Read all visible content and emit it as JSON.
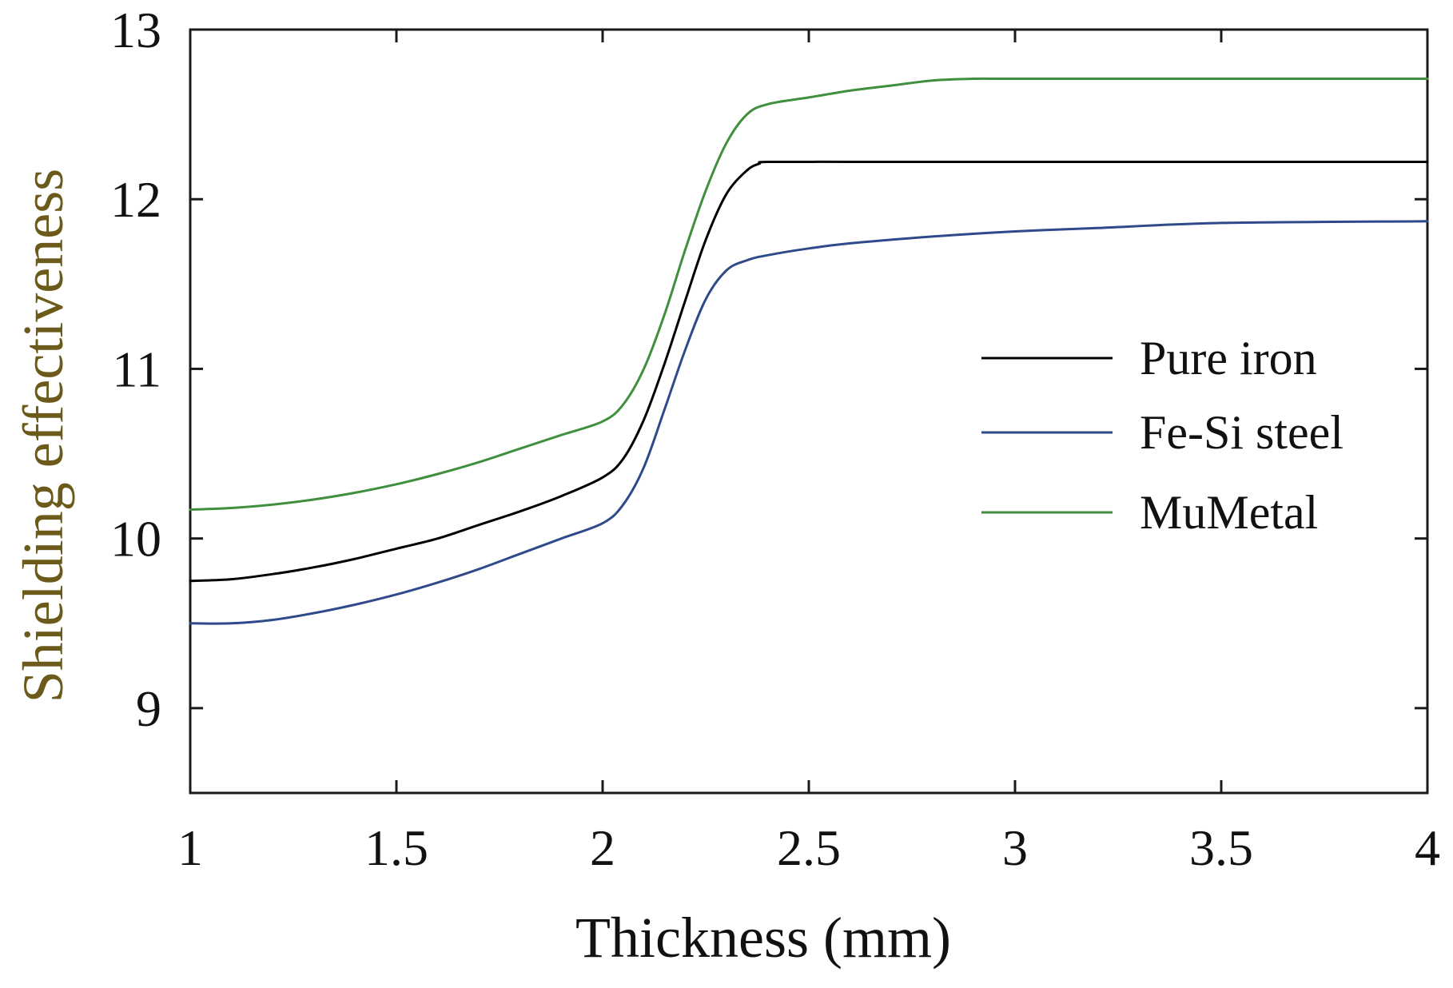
{
  "chart_data": {
    "type": "line",
    "xlabel": "Thickness (mm)",
    "ylabel": "Shielding effectiveness",
    "xlim": [
      1,
      4
    ],
    "ylim": [
      8.5,
      13
    ],
    "xticks": [
      1,
      1.5,
      2,
      2.5,
      3,
      3.5,
      4
    ],
    "xtick_labels": [
      "1",
      "1.5",
      "2",
      "2.5",
      "3",
      "3.5",
      "4"
    ],
    "yticks": [
      9,
      10,
      11,
      12,
      13
    ],
    "ytick_labels": [
      "9",
      "10",
      "11",
      "12",
      "13"
    ],
    "grid": false,
    "legend_position": "center-right",
    "colors": {
      "axes": "#1a1a1a",
      "xlabel": "#111111",
      "ylabel": "#6b5a1a"
    },
    "series": [
      {
        "name": "Pure iron",
        "color": "#000000",
        "x": [
          1,
          1.1,
          1.2,
          1.3,
          1.4,
          1.5,
          1.6,
          1.7,
          1.8,
          1.9,
          2.0,
          2.05,
          2.1,
          2.15,
          2.2,
          2.25,
          2.3,
          2.35,
          2.38,
          2.4,
          2.6,
          2.8,
          3.0,
          3.5,
          4.0
        ],
        "y": [
          9.75,
          9.76,
          9.79,
          9.83,
          9.88,
          9.94,
          10.0,
          10.08,
          10.16,
          10.25,
          10.36,
          10.47,
          10.7,
          11.03,
          11.4,
          11.76,
          12.03,
          12.17,
          12.21,
          12.22,
          12.22,
          12.22,
          12.22,
          12.22,
          12.22
        ]
      },
      {
        "name": "Fe-Si steel",
        "color": "#2f4a8a",
        "x": [
          1,
          1.1,
          1.2,
          1.3,
          1.4,
          1.5,
          1.6,
          1.7,
          1.8,
          1.9,
          2.0,
          2.05,
          2.1,
          2.15,
          2.2,
          2.25,
          2.3,
          2.35,
          2.4,
          2.5,
          2.6,
          2.8,
          3.0,
          3.2,
          3.5,
          4.0
        ],
        "y": [
          9.5,
          9.5,
          9.52,
          9.56,
          9.61,
          9.67,
          9.74,
          9.82,
          9.91,
          10.0,
          10.09,
          10.2,
          10.42,
          10.76,
          11.11,
          11.41,
          11.58,
          11.64,
          11.67,
          11.71,
          11.74,
          11.78,
          11.81,
          11.83,
          11.86,
          11.87
        ]
      },
      {
        "name": "MuMetal",
        "color": "#3f8f3f",
        "x": [
          1,
          1.1,
          1.2,
          1.3,
          1.4,
          1.5,
          1.6,
          1.7,
          1.8,
          1.9,
          2.0,
          2.05,
          2.1,
          2.15,
          2.2,
          2.25,
          2.3,
          2.35,
          2.4,
          2.5,
          2.6,
          2.7,
          2.8,
          2.9,
          3.0,
          3.5,
          4.0
        ],
        "y": [
          10.17,
          10.18,
          10.2,
          10.23,
          10.27,
          10.32,
          10.38,
          10.45,
          10.53,
          10.61,
          10.69,
          10.79,
          11.0,
          11.32,
          11.7,
          12.05,
          12.33,
          12.5,
          12.56,
          12.6,
          12.64,
          12.67,
          12.7,
          12.71,
          12.71,
          12.71,
          12.71
        ]
      }
    ]
  }
}
